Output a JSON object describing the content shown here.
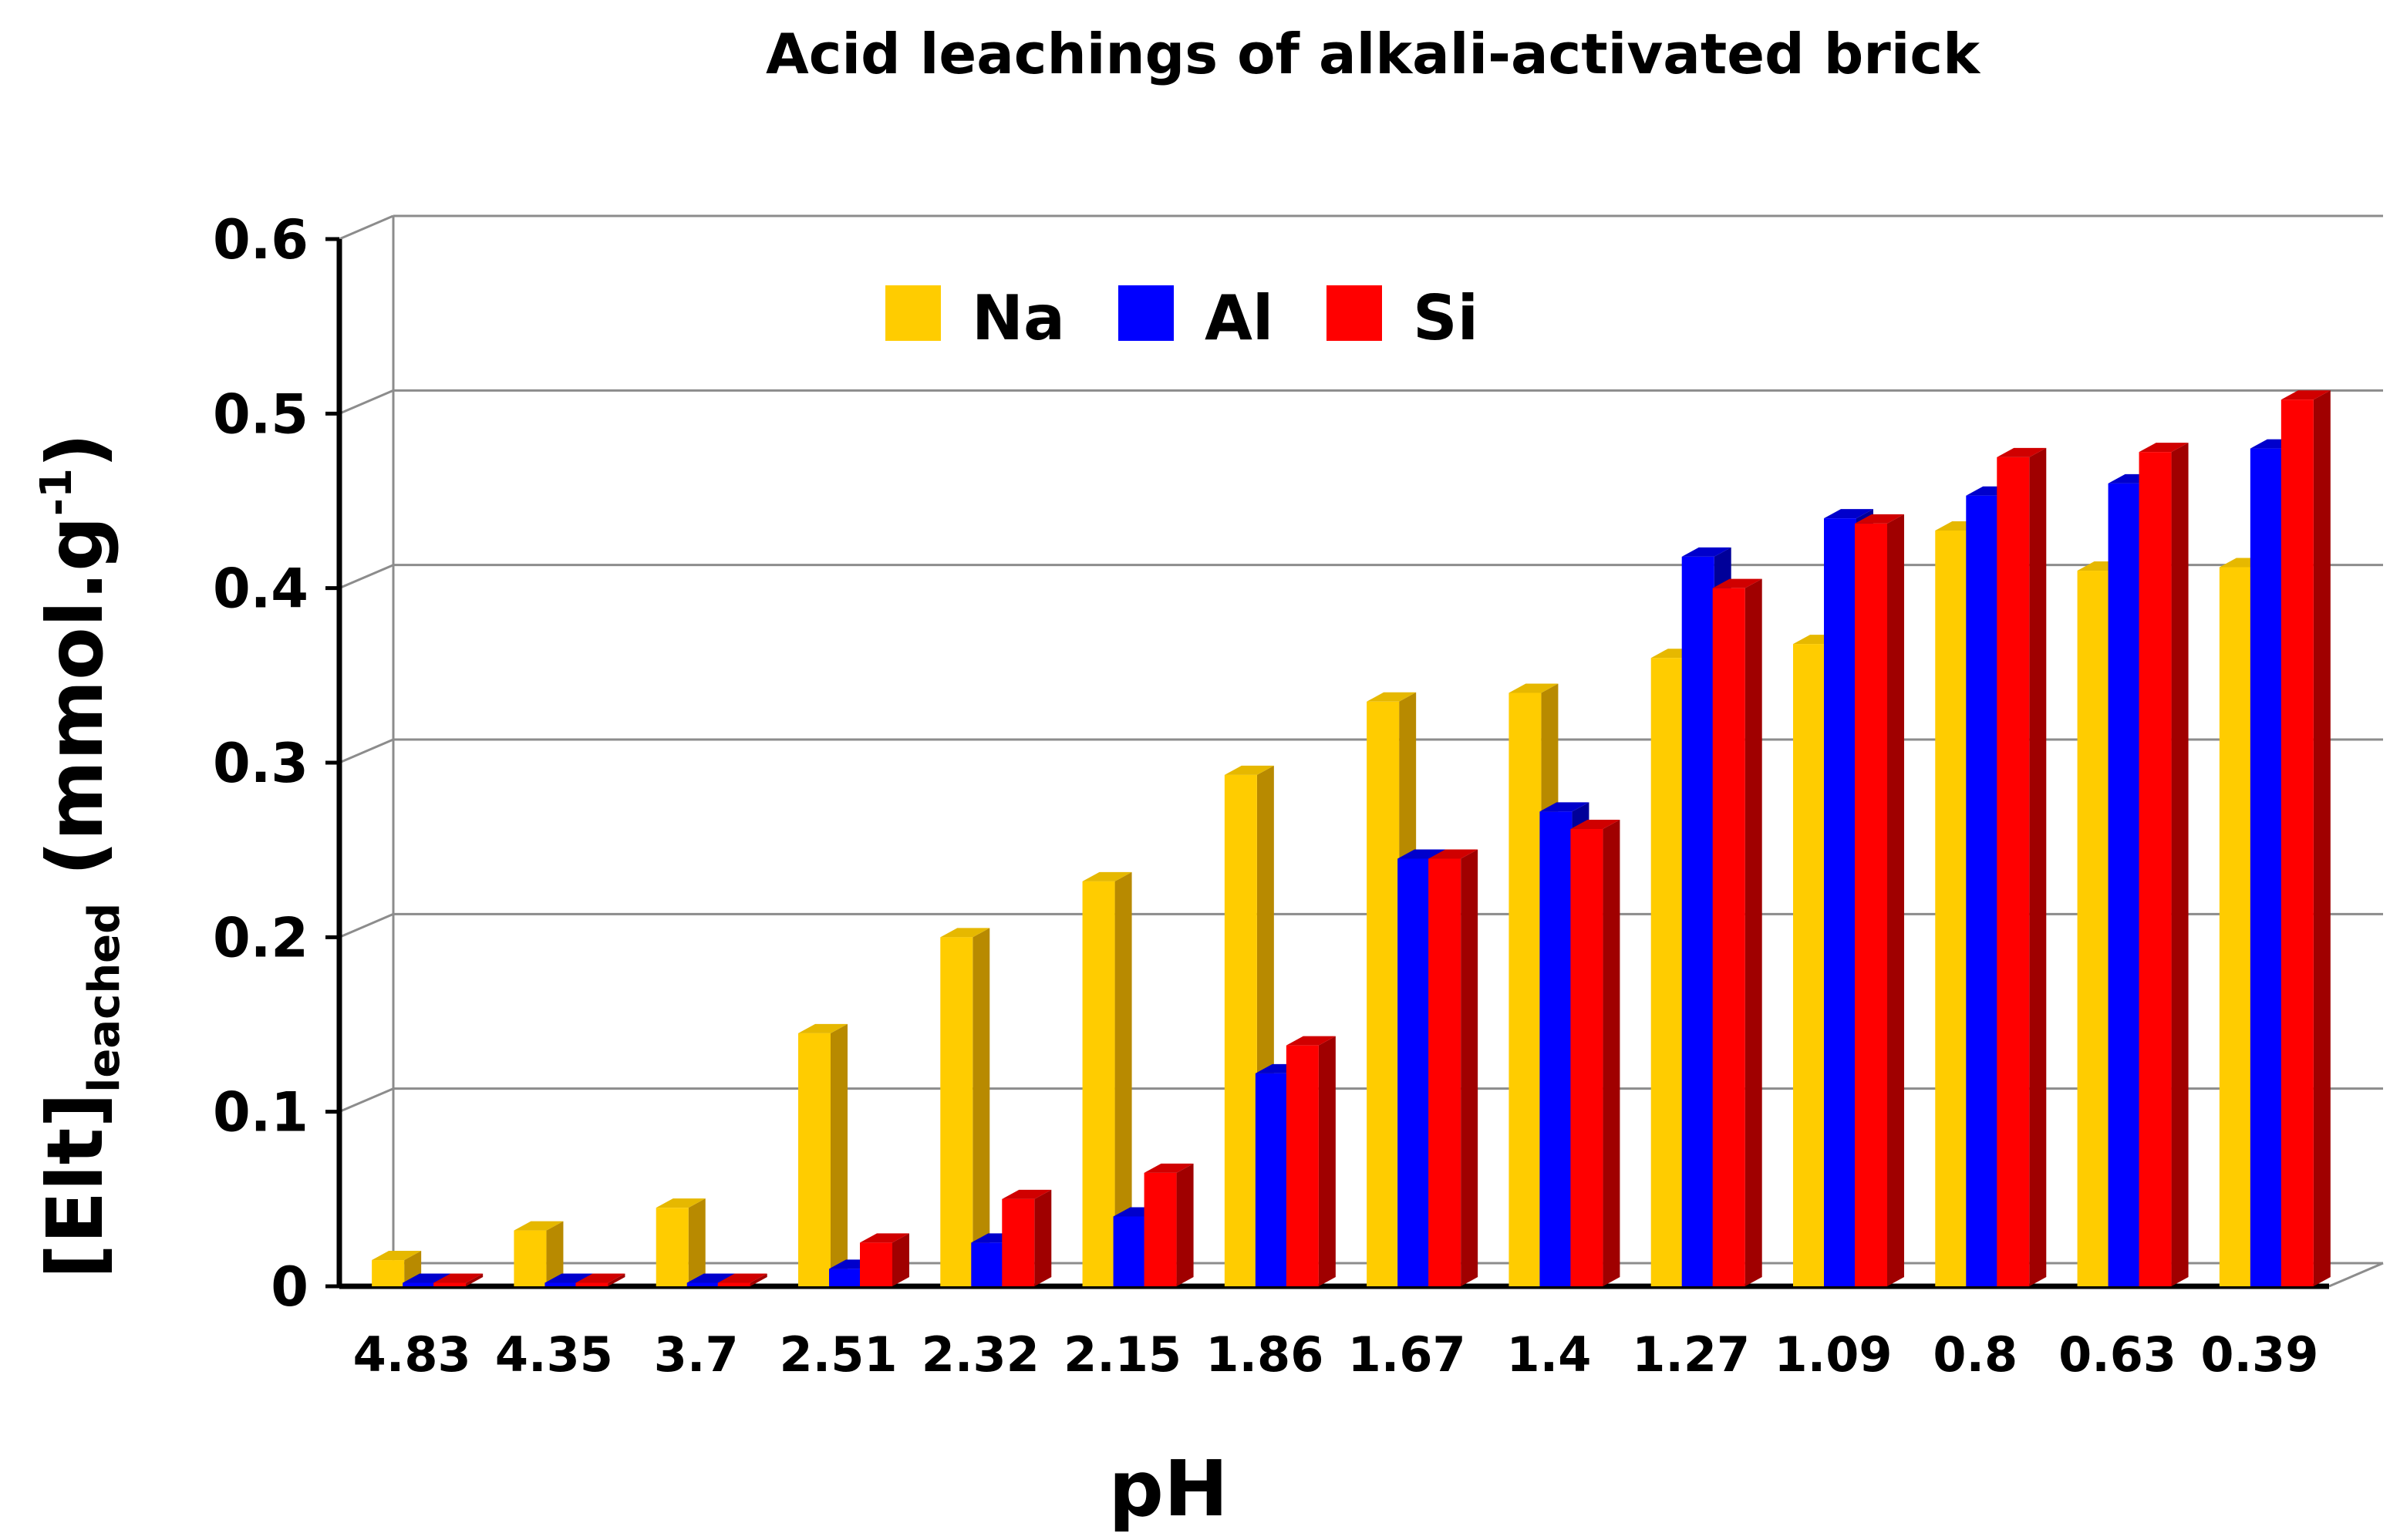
{
  "chart_data": {
    "type": "bar",
    "title": "Acid leachings of alkali-activated brick",
    "xlabel": "pH",
    "ylabel_main": "[Elt]",
    "ylabel_sub": "leached",
    "ylabel_unit_pre": " (mmol.g",
    "ylabel_unit_sup": "-1",
    "ylabel_unit_post": ")",
    "categories": [
      "4.83",
      "4.35",
      "3.7",
      "2.51",
      "2.32",
      "2.15",
      "1.86",
      "1.67",
      "1.4",
      "1.27",
      "1.09",
      "0.8",
      "0.63",
      "0.39"
    ],
    "ylim": [
      0,
      0.6
    ],
    "yticks": [
      "0",
      "0.1",
      "0.2",
      "0.3",
      "0.4",
      "0.5",
      "0.6"
    ],
    "grid": true,
    "legend_position": "top-left",
    "series": [
      {
        "name": "Na",
        "color": "#FFCC00",
        "side_color": "#B88A00",
        "top_color": "#E6B800",
        "values": [
          0.015,
          0.032,
          0.045,
          0.145,
          0.2,
          0.232,
          0.293,
          0.335,
          0.34,
          0.36,
          0.368,
          0.433,
          0.41,
          0.412
        ]
      },
      {
        "name": "Al",
        "color": "#0000FF",
        "side_color": "#000099",
        "top_color": "#0000CC",
        "values": [
          0.002,
          0.002,
          0.002,
          0.01,
          0.025,
          0.04,
          0.122,
          0.245,
          0.272,
          0.418,
          0.44,
          0.453,
          0.46,
          0.48
        ]
      },
      {
        "name": "Si",
        "color": "#FF0000",
        "side_color": "#A00000",
        "top_color": "#D00000",
        "values": [
          0.002,
          0.002,
          0.002,
          0.025,
          0.05,
          0.065,
          0.138,
          0.245,
          0.262,
          0.4,
          0.437,
          0.475,
          0.478,
          0.508
        ]
      }
    ]
  }
}
